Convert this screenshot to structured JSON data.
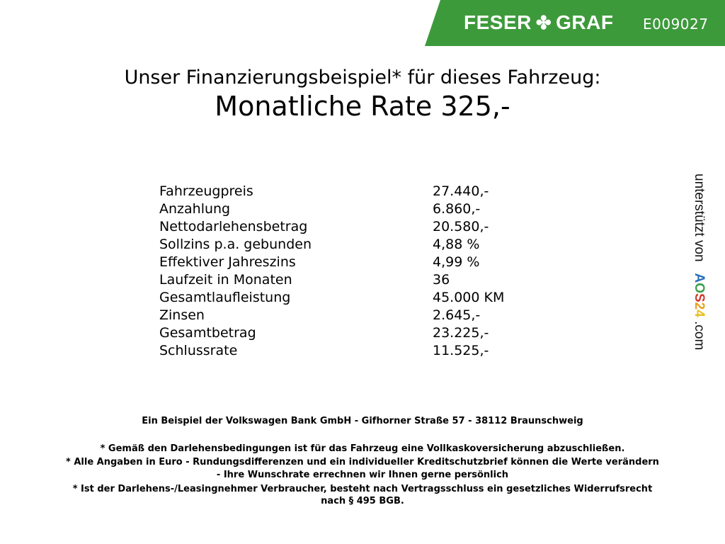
{
  "header": {
    "brand": "FESER",
    "brand2": "GRAF",
    "logo_icon": "clover-icon",
    "code": "E009027",
    "banner_color": "#3d9a3b"
  },
  "title": "Unser Finanzierungsbeispiel* für dieses Fahrzeug:",
  "subtitle": "Monatliche Rate 325,-",
  "rows": [
    {
      "label": "Fahrzeugpreis",
      "value": "27.440,-"
    },
    {
      "label": "Anzahlung",
      "value": "6.860,-"
    },
    {
      "label": "Nettodarlehensbetrag",
      "value": "20.580,-"
    },
    {
      "label": "Sollzins p.a. gebunden",
      "value": "4,88 %"
    },
    {
      "label": "Effektiver Jahreszins",
      "value": "4,99 %"
    },
    {
      "label": "Laufzeit in Monaten",
      "value": "36"
    },
    {
      "label": "Gesamtlaufleistung",
      "value": "45.000 KM"
    },
    {
      "label": "Zinsen",
      "value": "2.645,-"
    },
    {
      "label": "Gesamtbetrag",
      "value": "23.225,-"
    },
    {
      "label": "Schlussrate",
      "value": "11.525,-"
    }
  ],
  "side": {
    "text": "unterstützt von",
    "logo": "AOS24",
    "suffix": ".com"
  },
  "footer": {
    "bank": "Ein Beispiel der Volkswagen Bank GmbH - Gifhorner Straße 57 - 38112 Braunschweig",
    "note1": "* Gemäß den Darlehensbedingungen ist für das Fahrzeug eine Vollkaskoversicherung abzuschließen.",
    "note2a": "* Alle Angaben in Euro - Rundungsdifferenzen und ein individueller Kreditschutzbrief können die Werte verändern",
    "note2b": "- Ihre Wunschrate errechnen wir Ihnen gerne persönlich",
    "note3a": "* Ist der Darlehens-/Leasingnehmer Verbraucher, besteht nach Vertragsschluss ein gesetzliches Widerrufsrecht",
    "note3b": "nach § 495 BGB."
  }
}
